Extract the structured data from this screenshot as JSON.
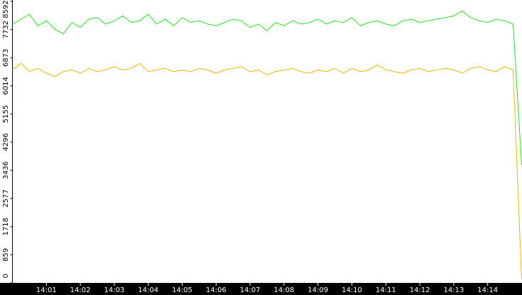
{
  "chart_data": {
    "type": "line",
    "categories": [
      null,
      null,
      null,
      null,
      "14:01",
      null,
      null,
      null,
      "14:02",
      null,
      null,
      null,
      "14:03",
      null,
      null,
      null,
      "14:04",
      null,
      null,
      null,
      "14:05",
      null,
      null,
      null,
      "14:06",
      null,
      null,
      null,
      "14:07",
      null,
      null,
      null,
      "14:08",
      null,
      null,
      null,
      "14:09",
      null,
      null,
      null,
      "14:10",
      null,
      null,
      null,
      "14:11",
      null,
      null,
      null,
      "14:12",
      null,
      null,
      null,
      "14:13",
      null,
      null,
      null,
      "14:14",
      null,
      null,
      null,
      null
    ],
    "series": [
      {
        "color": "#22dd22",
        "values": [
          7900,
          8050,
          8200,
          7850,
          8000,
          7750,
          7600,
          7950,
          7800,
          8050,
          8100,
          7900,
          8000,
          8150,
          7950,
          8000,
          8200,
          7900,
          8050,
          7850,
          8100,
          7950,
          8000,
          7900,
          7850,
          7950,
          8050,
          8000,
          7800,
          7900,
          7700,
          7950,
          7850,
          8000,
          7900,
          7950,
          8050,
          7900,
          8000,
          7950,
          8100,
          7850,
          7950,
          8000,
          7900,
          7850,
          8000,
          8050,
          7950,
          8000,
          8050,
          8100,
          8150,
          8300,
          8100,
          8000,
          7950,
          8050,
          8000,
          7900,
          3600
        ]
      },
      {
        "color": "#f0b400",
        "values": [
          6500,
          6700,
          6450,
          6550,
          6400,
          6300,
          6450,
          6500,
          6400,
          6550,
          6450,
          6500,
          6600,
          6500,
          6550,
          6700,
          6450,
          6500,
          6550,
          6450,
          6500,
          6450,
          6550,
          6500,
          6400,
          6500,
          6550,
          6600,
          6450,
          6500,
          6350,
          6450,
          6500,
          6550,
          6450,
          6400,
          6500,
          6450,
          6550,
          6400,
          6550,
          6450,
          6500,
          6650,
          6500,
          6450,
          6400,
          6500,
          6550,
          6450,
          6500,
          6550,
          6500,
          6400,
          6550,
          6600,
          6500,
          6450,
          6600,
          6500,
          100
        ]
      }
    ],
    "ylim": [
      0,
      8592
    ],
    "yticks": [
      0,
      859,
      1718,
      2577,
      3436,
      4296,
      5155,
      6014,
      6873,
      7732,
      8592
    ]
  }
}
